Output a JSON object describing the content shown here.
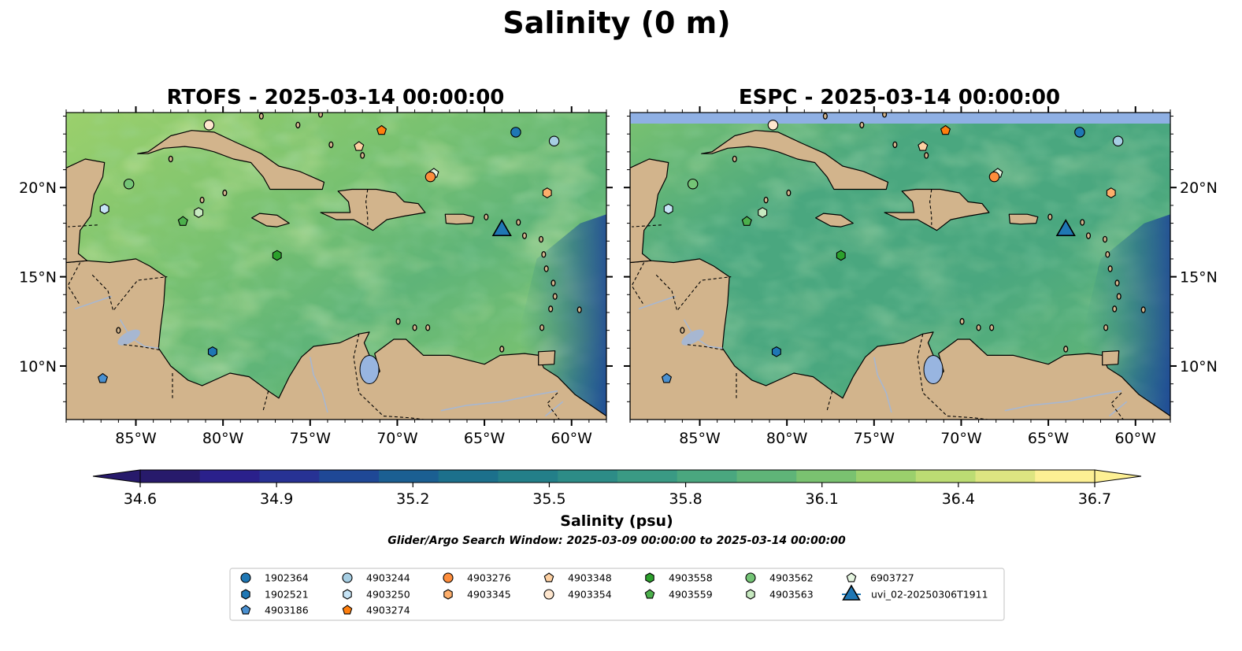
{
  "figure": {
    "title": "Salinity (0 m)",
    "window_text": "Glider/Argo Search Window: 2025-03-09 00:00:00 to 2025-03-14 00:00:00"
  },
  "panels": [
    {
      "title": "RTOFS - 2025-03-14 00:00:00",
      "model": "RTOFS",
      "top_band": false
    },
    {
      "title": "ESPC - 2025-03-14 00:00:00",
      "model": "ESPC",
      "top_band": true
    }
  ],
  "axes": {
    "x_ticks": [
      "85°W",
      "80°W",
      "75°W",
      "70°W",
      "65°W",
      "60°W"
    ],
    "x_tick_values": [
      -85,
      -80,
      -75,
      -70,
      -65,
      -60
    ],
    "y_ticks": [
      "20°N",
      "15°N",
      "10°N"
    ],
    "y_tick_values": [
      20,
      15,
      10
    ],
    "lon_range": [
      -89,
      -58
    ],
    "lat_range": [
      7,
      24.2
    ]
  },
  "colorbar": {
    "label": "Salinity (psu)",
    "ticks": [
      "34.6",
      "34.9",
      "35.2",
      "35.5",
      "35.8",
      "36.1",
      "36.4",
      "36.7"
    ],
    "tick_values": [
      34.6,
      34.9,
      35.2,
      35.5,
      35.8,
      36.1,
      36.4,
      36.7
    ],
    "colors": [
      "#271a6b",
      "#2a208b",
      "#273294",
      "#1f4896",
      "#1b5f92",
      "#1c708c",
      "#237f89",
      "#2d8c87",
      "#3a9a84",
      "#4aa77f",
      "#5fb478",
      "#7ac270",
      "#9bd06c",
      "#bcdc73",
      "#dde581",
      "#fdf094"
    ],
    "extend": "both"
  },
  "colors": {
    "land": "#d2b48c",
    "lake": "#98b5e0",
    "river": "#a7b7d1",
    "pacific": "#2a1a6a",
    "espc_band": "#8fb0e4",
    "glider": "#1f77b4"
  },
  "legend": {
    "columns": [
      [
        {
          "label": "1902364",
          "marker": "circle",
          "color": "#1f77b4"
        },
        {
          "label": "1902521",
          "marker": "hexagon",
          "color": "#1f77b4"
        },
        {
          "label": "4903186",
          "marker": "pentagon",
          "color": "#4a90d0"
        }
      ],
      [
        {
          "label": "4903244",
          "marker": "circle",
          "color": "#a6cee3"
        },
        {
          "label": "4903250",
          "marker": "hexagon",
          "color": "#c6e4f6"
        },
        {
          "label": "4903274",
          "marker": "pentagon",
          "color": "#ff7f0e"
        }
      ],
      [
        {
          "label": "4903276",
          "marker": "circle",
          "color": "#fd8d3c"
        },
        {
          "label": "4903345",
          "marker": "hexagon",
          "color": "#fdae6b"
        }
      ],
      [
        {
          "label": "4903348",
          "marker": "pentagon",
          "color": "#fdd0a2"
        },
        {
          "label": "4903354",
          "marker": "circle",
          "color": "#fee6ce"
        }
      ],
      [
        {
          "label": "4903558",
          "marker": "hexagon",
          "color": "#2ca02c"
        },
        {
          "label": "4903559",
          "marker": "pentagon",
          "color": "#4cb04c"
        }
      ],
      [
        {
          "label": "4903562",
          "marker": "circle",
          "color": "#74c476"
        },
        {
          "label": "4903563",
          "marker": "hexagon",
          "color": "#c7e9c0"
        }
      ],
      [
        {
          "label": "6903727",
          "marker": "pentagon",
          "color": "#e5f5e0"
        },
        {
          "label": "uvi_02-20250306T1911",
          "marker": "triangle",
          "color": "#1f77b4"
        }
      ]
    ]
  },
  "floats": [
    {
      "id": "1902364",
      "lon": -63.2,
      "lat": 23.1
    },
    {
      "id": "4903244",
      "lon": -61.0,
      "lat": 22.6
    },
    {
      "id": "4903274",
      "lon": -70.9,
      "lat": 23.2
    },
    {
      "id": "4903354",
      "lon": -80.8,
      "lat": 23.5
    },
    {
      "id": "4903348",
      "lon": -72.2,
      "lat": 22.3
    },
    {
      "id": "6903727",
      "lon": -67.9,
      "lat": 20.8
    },
    {
      "id": "4903276",
      "lon": -68.1,
      "lat": 20.6
    },
    {
      "id": "4903345",
      "lon": -61.4,
      "lat": 19.7
    },
    {
      "id": "4903562",
      "lon": -85.4,
      "lat": 20.2
    },
    {
      "id": "4903250",
      "lon": -86.8,
      "lat": 18.8
    },
    {
      "id": "4903563",
      "lon": -81.4,
      "lat": 18.6
    },
    {
      "id": "4903559",
      "lon": -82.3,
      "lat": 18.1
    },
    {
      "id": "4903558",
      "lon": -76.9,
      "lat": 16.2
    },
    {
      "id": "1902521",
      "lon": -80.6,
      "lat": 10.8
    },
    {
      "id": "4903186",
      "lon": -86.9,
      "lat": 9.3
    },
    {
      "id": "uvi_02-20250306T1911",
      "lon": -64.0,
      "lat": 17.6
    }
  ]
}
